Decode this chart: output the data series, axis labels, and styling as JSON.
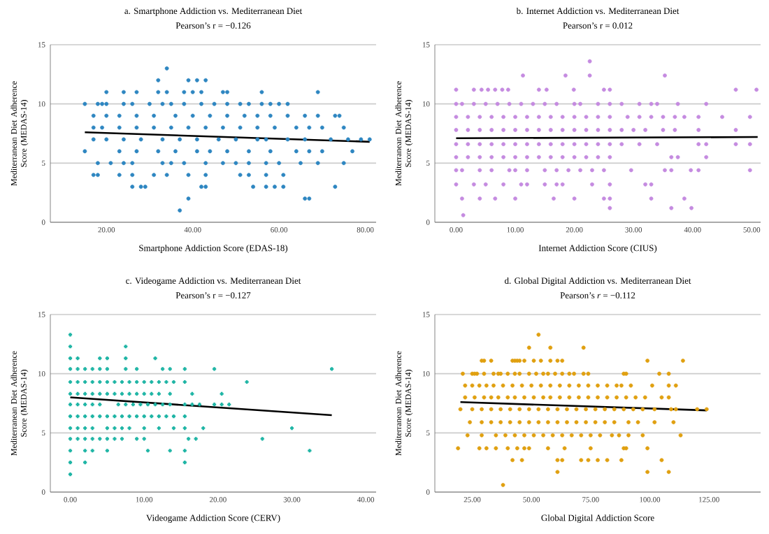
{
  "chart_data": [
    {
      "type": "scatter",
      "title": "a. Smartphone Addiction vs. Mediterranean Diet",
      "subtitle": "Pearson’s r = −0.126",
      "xlabel": "Smartphone Addiction Score (EDAS-18)",
      "ylabel": "Mediterranean Diet Adherence Score (MEDAS-14)",
      "xlim": [
        7,
        82.5
      ],
      "xticks": [
        {
          "value": 20,
          "label": "20.00"
        },
        {
          "value": 40,
          "label": "40.00"
        },
        {
          "value": 60,
          "label": "60.00"
        },
        {
          "value": 80,
          "label": "80.00"
        }
      ],
      "ylim": [
        0,
        15
      ],
      "yticks": [
        0,
        5,
        10,
        15
      ],
      "grid": "y",
      "marker": "circle",
      "series": [
        {
          "color": "#2e86c1",
          "x": [
            34,
            32,
            39,
            41,
            43,
            20,
            24,
            27,
            32,
            34,
            38,
            40,
            42,
            47,
            48,
            56,
            69,
            15,
            18,
            19,
            20,
            24,
            26,
            30,
            33,
            35,
            38,
            42,
            45,
            48,
            51,
            53,
            56,
            58,
            60,
            62,
            17,
            20,
            23,
            27,
            31,
            36,
            40,
            44,
            48,
            52,
            55,
            58,
            62,
            66,
            69,
            73,
            74,
            17,
            19,
            23,
            27,
            31,
            35,
            39,
            43,
            47,
            51,
            55,
            59,
            64,
            67,
            70,
            75,
            17,
            20,
            24,
            28,
            33,
            37,
            41,
            46,
            50,
            55,
            57,
            62,
            66,
            72,
            76,
            79,
            81,
            15,
            23,
            27,
            32,
            36,
            41,
            44,
            48,
            53,
            58,
            64,
            67,
            70,
            77,
            18,
            21,
            24,
            26,
            33,
            35,
            38,
            43,
            47,
            50,
            53,
            57,
            60,
            65,
            69,
            75,
            17,
            18,
            23,
            26,
            31,
            34,
            39,
            43,
            51,
            53,
            57,
            61,
            26,
            28,
            29,
            42,
            43,
            54,
            57,
            59,
            61,
            73,
            39,
            66,
            67,
            37
          ],
          "values": [
            13,
            12,
            12,
            12,
            12,
            11,
            11,
            11,
            11,
            11,
            11,
            11,
            11,
            11,
            11,
            11,
            11,
            10,
            10,
            10,
            10,
            10,
            10,
            10,
            10,
            10,
            10,
            10,
            10,
            10,
            10,
            10,
            10,
            10,
            10,
            10,
            9,
            9,
            9,
            9,
            9,
            9,
            9,
            9,
            9,
            9,
            9,
            9,
            9,
            9,
            9,
            9,
            9,
            8,
            8,
            8,
            8,
            8,
            8,
            8,
            8,
            8,
            8,
            8,
            8,
            8,
            8,
            8,
            8,
            7,
            7,
            7,
            7,
            7,
            7,
            7,
            7,
            7,
            7,
            7,
            7,
            7,
            7,
            7,
            7,
            7,
            6,
            6,
            6,
            6,
            6,
            6,
            6,
            6,
            6,
            6,
            6,
            6,
            6,
            6,
            5,
            5,
            5,
            5,
            5,
            5,
            5,
            5,
            5,
            5,
            5,
            5,
            5,
            5,
            5,
            5,
            4,
            4,
            4,
            4,
            4,
            4,
            4,
            4,
            4,
            4,
            4,
            4,
            3,
            3,
            3,
            3,
            3,
            3,
            3,
            3,
            3,
            3,
            2,
            2,
            2,
            1
          ]
        },
        {
          "type": "line",
          "marker": "none",
          "color": "#000000",
          "x": [
            15,
            81
          ],
          "values": [
            7.6,
            6.8
          ]
        }
      ]
    },
    {
      "type": "scatter",
      "title": "b. Internet Addiction vs. Mediterranean Diet",
      "subtitle": "Pearson’s r = 0.012",
      "xlabel": "Internet Addiction Score (CIUS)",
      "ylabel": "Mediterranean Diet Adherence Score (MEDAS-14)",
      "xlim": [
        -3.6,
        51.5
      ],
      "xticks": [
        {
          "value": 0,
          "label": "0.00"
        },
        {
          "value": 10,
          "label": "10.00"
        },
        {
          "value": 20,
          "label": "20.00"
        },
        {
          "value": 30,
          "label": "30.00"
        },
        {
          "value": 40,
          "label": "40.00"
        },
        {
          "value": 50,
          "label": "50.00"
        }
      ],
      "ylim": [
        0,
        15
      ],
      "yticks": [
        0,
        5,
        10,
        15
      ],
      "grid": "y",
      "marker": "circle",
      "series": [
        {
          "color": "#c58be0",
          "x": [
            22.6,
            11.3,
            18.5,
            22.6,
            35.3,
            0,
            3,
            4.3,
            5.4,
            6.6,
            7.8,
            8.8,
            14,
            15.3,
            19.9,
            25,
            26,
            47.3,
            50.8,
            0,
            1,
            3,
            5,
            7,
            9,
            11,
            13,
            15,
            17,
            20,
            21,
            24,
            26,
            28,
            31,
            33,
            34,
            37.5,
            42.3,
            0,
            2,
            4,
            6,
            8,
            10,
            12,
            14,
            16,
            18,
            20,
            22,
            24,
            26,
            29,
            31,
            33,
            35,
            37,
            38.6,
            41,
            45,
            49.7,
            0,
            2,
            4,
            6,
            8,
            10,
            12,
            14,
            16,
            18,
            20,
            22,
            24,
            26,
            28,
            30,
            32,
            35,
            37,
            41,
            47.3,
            0,
            2,
            4,
            6,
            8,
            10,
            12,
            14,
            16,
            18,
            20,
            22,
            24,
            26,
            28,
            31,
            34,
            41,
            42.3,
            47.3,
            49.7,
            0,
            2,
            4,
            6,
            8,
            10,
            12,
            14,
            16,
            18,
            20,
            22,
            24,
            26,
            36.4,
            37.5,
            42.3,
            0,
            1,
            4,
            6,
            9,
            10,
            12,
            15,
            17,
            19,
            21,
            23,
            25,
            29.6,
            35.3,
            36.4,
            39.7,
            41,
            49.7,
            0,
            3,
            5,
            8,
            11,
            12,
            15,
            17,
            18,
            23,
            26,
            32,
            33,
            1,
            4,
            6.6,
            10,
            16.5,
            20,
            25,
            26,
            33,
            38.6,
            26,
            36.4,
            39.8,
            1.2
          ],
          "values": [
            13.6,
            12.4,
            12.4,
            12.4,
            12.4,
            11.2,
            11.2,
            11.2,
            11.2,
            11.2,
            11.2,
            11.2,
            11.2,
            11.2,
            11.2,
            11.2,
            11.2,
            11.2,
            11.2,
            10,
            10,
            10,
            10,
            10,
            10,
            10,
            10,
            10,
            10,
            10,
            10,
            10,
            10,
            10,
            10,
            10,
            10,
            10,
            10,
            8.9,
            8.9,
            8.9,
            8.9,
            8.9,
            8.9,
            8.9,
            8.9,
            8.9,
            8.9,
            8.9,
            8.9,
            8.9,
            8.9,
            8.9,
            8.9,
            8.9,
            8.9,
            8.9,
            8.9,
            8.9,
            8.9,
            8.9,
            7.8,
            7.8,
            7.8,
            7.8,
            7.8,
            7.8,
            7.8,
            7.8,
            7.8,
            7.8,
            7.8,
            7.8,
            7.8,
            7.8,
            7.8,
            7.8,
            7.8,
            7.8,
            7.8,
            7.8,
            7.8,
            6.6,
            6.6,
            6.6,
            6.6,
            6.6,
            6.6,
            6.6,
            6.6,
            6.6,
            6.6,
            6.6,
            6.6,
            6.6,
            6.6,
            6.6,
            6.6,
            6.6,
            6.6,
            6.6,
            6.6,
            6.6,
            5.5,
            5.5,
            5.5,
            5.5,
            5.5,
            5.5,
            5.5,
            5.5,
            5.5,
            5.5,
            5.5,
            5.5,
            5.5,
            5.5,
            5.5,
            5.5,
            5.5,
            4.4,
            4.4,
            4.4,
            4.4,
            4.4,
            4.4,
            4.4,
            4.4,
            4.4,
            4.4,
            4.4,
            4.4,
            4.4,
            4.4,
            4.4,
            4.4,
            4.4,
            4.4,
            4.4,
            3.2,
            3.2,
            3.2,
            3.2,
            3.2,
            3.2,
            3.2,
            3.2,
            3.2,
            3.2,
            3.2,
            3.2,
            3.2,
            2.0,
            2.0,
            2.0,
            2.0,
            2.0,
            2.0,
            2.0,
            2.0,
            2.0,
            2.0,
            1.2,
            1.2,
            1.2,
            0.6
          ]
        },
        {
          "type": "line",
          "marker": "none",
          "color": "#000000",
          "x": [
            0,
            51
          ],
          "values": [
            7.1,
            7.2
          ]
        }
      ]
    },
    {
      "type": "scatter",
      "title": "c. Videogame Addiction vs. Mediterranean Diet",
      "subtitle": "Pearson’s r = −0.127",
      "xlabel": "Videogame Addiction Score (CERV)",
      "ylabel": "Mediterranean Diet Adherence Score (MEDAS-14)",
      "xlim": [
        -2.7,
        41.4
      ],
      "xticks": [
        {
          "value": 0,
          "label": "0.00"
        },
        {
          "value": 10,
          "label": "10.00"
        },
        {
          "value": 20,
          "label": "20.00"
        },
        {
          "value": 30,
          "label": "30.00"
        },
        {
          "value": 40,
          "label": "40.00"
        }
      ],
      "ylim": [
        0,
        15
      ],
      "yticks": [
        0,
        5,
        10,
        15
      ],
      "grid": "y",
      "marker": "cross",
      "series": [
        {
          "color": "#1fb5a5",
          "x": [
            0,
            0,
            7.5,
            0,
            1,
            4,
            5,
            7.5,
            11.5,
            0,
            1,
            2,
            3,
            4,
            5,
            7.5,
            9,
            12.5,
            13.5,
            15.5,
            19.5,
            35.4,
            0,
            1,
            2,
            3,
            4,
            5,
            6,
            7,
            8,
            9,
            10,
            11,
            12,
            13,
            14,
            15.5,
            23.9,
            0,
            1,
            2,
            3,
            4,
            5,
            6,
            7,
            8,
            9,
            10,
            11,
            12,
            13.5,
            16.5,
            20.5,
            0,
            1,
            2,
            3,
            4,
            6.5,
            7.5,
            8.5,
            9.5,
            10.5,
            11.5,
            12.5,
            13.5,
            15.5,
            16.5,
            17.5,
            19.5,
            20.5,
            21.5,
            0,
            1,
            2,
            3,
            4,
            5,
            6,
            7,
            8,
            9,
            10,
            11,
            12,
            13,
            14,
            15.5,
            0,
            1,
            2,
            3,
            5,
            6,
            7,
            8,
            10,
            12,
            14,
            15.5,
            18,
            30,
            0,
            1,
            2,
            3,
            4,
            5,
            6,
            7,
            9,
            10,
            16,
            17,
            26,
            0,
            2,
            3,
            5,
            10.5,
            13.5,
            15.5,
            32.4,
            0,
            2,
            15.5,
            0
          ],
          "values": [
            13.3,
            12.3,
            12.3,
            11.3,
            11.3,
            11.3,
            11.3,
            11.3,
            11.3,
            10.4,
            10.4,
            10.4,
            10.4,
            10.4,
            10.4,
            10.4,
            10.4,
            10.4,
            10.4,
            10.4,
            10.4,
            10.4,
            9.3,
            9.3,
            9.3,
            9.3,
            9.3,
            9.3,
            9.3,
            9.3,
            9.3,
            9.3,
            9.3,
            9.3,
            9.3,
            9.3,
            9.3,
            9.3,
            9.3,
            8.3,
            8.3,
            8.3,
            8.3,
            8.3,
            8.3,
            8.3,
            8.3,
            8.3,
            8.3,
            8.3,
            8.3,
            8.3,
            8.3,
            8.3,
            8.3,
            7.4,
            7.4,
            7.4,
            7.4,
            7.4,
            7.4,
            7.4,
            7.4,
            7.4,
            7.4,
            7.4,
            7.4,
            7.4,
            7.4,
            7.4,
            7.4,
            7.4,
            7.4,
            7.4,
            6.4,
            6.4,
            6.4,
            6.4,
            6.4,
            6.4,
            6.4,
            6.4,
            6.4,
            6.4,
            6.4,
            6.4,
            6.4,
            6.4,
            6.4,
            6.4,
            5.4,
            5.4,
            5.4,
            5.4,
            5.4,
            5.4,
            5.4,
            5.4,
            5.4,
            5.4,
            5.4,
            5.4,
            5.4,
            5.4,
            4.5,
            4.5,
            4.5,
            4.5,
            4.5,
            4.5,
            4.5,
            4.5,
            4.5,
            4.5,
            4.5,
            4.5,
            4.5,
            3.5,
            3.5,
            3.5,
            3.5,
            3.5,
            3.5,
            3.5,
            3.5,
            2.5,
            2.5,
            2.5,
            1.5
          ]
        },
        {
          "type": "line",
          "marker": "none",
          "color": "#000000",
          "x": [
            0,
            35.4
          ],
          "values": [
            8.0,
            6.5
          ]
        }
      ]
    },
    {
      "type": "scatter",
      "title": "d. Global Digital Addiction vs. Mediterranean Diet",
      "subtitle": "Pearson’s *r* = −0.112",
      "xlabel": "Global Digital Addiction Score",
      "ylabel": "Mediterranean Diet Adherence Score (MEDAS-14)",
      "xlim": [
        9.2,
        146.8
      ],
      "xticks": [
        {
          "value": 25,
          "label": "25.00"
        },
        {
          "value": 50,
          "label": "50.00"
        },
        {
          "value": 75,
          "label": "75.00"
        },
        {
          "value": 100,
          "label": "100.00"
        },
        {
          "value": 125,
          "label": "125.00"
        }
      ],
      "ylim": [
        0,
        15
      ],
      "yticks": [
        0,
        5,
        10,
        15
      ],
      "grid": "y",
      "marker": "circle",
      "series": [
        {
          "color": "#e0a010",
          "x": [
            53,
            49,
            58,
            72,
            29,
            30,
            33,
            42,
            43,
            44,
            45,
            47,
            51,
            54,
            58,
            61,
            63,
            99,
            114,
            21,
            25,
            26,
            27,
            30,
            34,
            36,
            37,
            40,
            43,
            45,
            49,
            52,
            55,
            57,
            60,
            63,
            66,
            68,
            72,
            74,
            89,
            90,
            104,
            108,
            22,
            25,
            28,
            31,
            34,
            38,
            42,
            46,
            50,
            54,
            58,
            62,
            66,
            70,
            74,
            78,
            82,
            86,
            88,
            92,
            101,
            108,
            111,
            22,
            26,
            30,
            33,
            36,
            40,
            43,
            47,
            51,
            55,
            58,
            62,
            66,
            70,
            74,
            78,
            82,
            86,
            90,
            94,
            98,
            105,
            108,
            20,
            25,
            29,
            33,
            37,
            41,
            45,
            49,
            53,
            57,
            61,
            65,
            69,
            73,
            77,
            81,
            85,
            89,
            93,
            97,
            102,
            109,
            111,
            120,
            124,
            24,
            29,
            33,
            37,
            41,
            45,
            49,
            53,
            57,
            61,
            65,
            69,
            73,
            77,
            81,
            85,
            91,
            95,
            102,
            110,
            23,
            29,
            35,
            39,
            43,
            47,
            51,
            55,
            59,
            63,
            67,
            71,
            75,
            79,
            84,
            87,
            91,
            97,
            113,
            19,
            28,
            31,
            35,
            40,
            44,
            47,
            49,
            57,
            64,
            75,
            89,
            90,
            99,
            42,
            46,
            61,
            63,
            71,
            74,
            78,
            82,
            88,
            105,
            61,
            99,
            108,
            38
          ],
          "values": [
            13.3,
            12.2,
            12.2,
            12.2,
            11.1,
            11.1,
            11.1,
            11.1,
            11.1,
            11.1,
            11.1,
            11.1,
            11.1,
            11.1,
            11.1,
            11.1,
            11.1,
            11.1,
            11.1,
            10,
            10,
            10,
            10,
            10,
            10,
            10,
            10,
            10,
            10,
            10,
            10,
            10,
            10,
            10,
            10,
            10,
            10,
            10,
            10,
            10,
            10,
            10,
            10,
            10,
            9,
            9,
            9,
            9,
            9,
            9,
            9,
            9,
            9,
            9,
            9,
            9,
            9,
            9,
            9,
            9,
            9,
            9,
            9,
            9,
            9,
            9,
            9,
            8,
            8,
            8,
            8,
            8,
            8,
            8,
            8,
            8,
            8,
            8,
            8,
            8,
            8,
            8,
            8,
            8,
            8,
            8,
            8,
            8,
            8,
            8,
            7,
            7,
            7,
            7,
            7,
            7,
            7,
            7,
            7,
            7,
            7,
            7,
            7,
            7,
            7,
            7,
            7,
            7,
            7,
            7,
            7,
            7,
            7,
            7,
            7,
            5.9,
            5.9,
            5.9,
            5.9,
            5.9,
            5.9,
            5.9,
            5.9,
            5.9,
            5.9,
            5.9,
            5.9,
            5.9,
            5.9,
            5.9,
            5.9,
            5.9,
            5.9,
            5.9,
            5.9,
            4.8,
            4.8,
            4.8,
            4.8,
            4.8,
            4.8,
            4.8,
            4.8,
            4.8,
            4.8,
            4.8,
            4.8,
            4.8,
            4.8,
            4.8,
            4.8,
            4.8,
            4.8,
            4.8,
            3.7,
            3.7,
            3.7,
            3.7,
            3.7,
            3.7,
            3.7,
            3.7,
            3.7,
            3.7,
            3.7,
            3.7,
            3.7,
            3.7,
            2.7,
            2.7,
            2.7,
            2.7,
            2.7,
            2.7,
            2.7,
            2.7,
            2.7,
            2.7,
            1.7,
            1.7,
            1.7,
            0.6
          ]
        },
        {
          "type": "line",
          "marker": "none",
          "color": "#000000",
          "x": [
            20,
            124
          ],
          "values": [
            7.6,
            6.9
          ]
        }
      ]
    }
  ]
}
